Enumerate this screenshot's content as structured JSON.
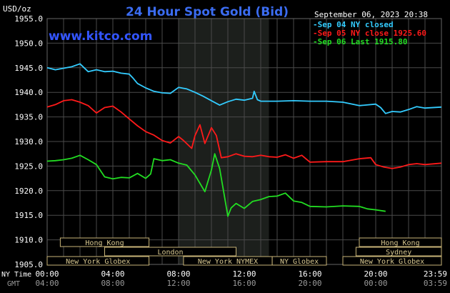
{
  "chart_data": {
    "type": "line",
    "title": "24 Hour Spot Gold (Bid)",
    "watermark": "www.kitco.com",
    "timestamp": "September 06, 2023 20:38",
    "y_unit": "USD/oz",
    "ylim": [
      1905.0,
      1955.0
    ],
    "yticks": [
      "1955.0",
      "1950.0",
      "1945.0",
      "1940.0",
      "1935.0",
      "1930.0",
      "1925.0",
      "1920.0",
      "1915.0",
      "1910.0",
      "1905.0"
    ],
    "xlim": [
      0,
      24
    ],
    "xlabel_ny": "NY Time",
    "xlabel_gmt": "GMT",
    "xticks_ny": [
      "00:00",
      "04:00",
      "08:00",
      "12:00",
      "16:00",
      "20:00",
      "23:59"
    ],
    "xticks_gmt": [
      "04:00",
      "08:00",
      "12:00",
      "16:00",
      "20:00",
      "00:00",
      "03:59"
    ],
    "grid": true,
    "legend_position": "top-right",
    "highlight_session_hours": [
      8.0,
      13.5
    ],
    "series": [
      {
        "name": "Sep 04 NY closed",
        "legend": "Sep 04 NY closed",
        "color": "#33ccff",
        "points": [
          [
            0,
            1945.0
          ],
          [
            0.5,
            1944.6
          ],
          [
            1,
            1944.9
          ],
          [
            1.5,
            1945.2
          ],
          [
            2,
            1945.8
          ],
          [
            2.5,
            1944.2
          ],
          [
            3,
            1944.6
          ],
          [
            3.5,
            1944.2
          ],
          [
            4,
            1944.3
          ],
          [
            4.5,
            1943.9
          ],
          [
            5,
            1943.7
          ],
          [
            5.2,
            1943.0
          ],
          [
            5.5,
            1941.8
          ],
          [
            6,
            1940.9
          ],
          [
            6.5,
            1940.2
          ],
          [
            7,
            1939.9
          ],
          [
            7.5,
            1939.8
          ],
          [
            8,
            1941.0
          ],
          [
            8.5,
            1940.7
          ],
          [
            9,
            1940.0
          ],
          [
            9.5,
            1939.2
          ],
          [
            10,
            1938.3
          ],
          [
            10.5,
            1937.4
          ],
          [
            11,
            1938.1
          ],
          [
            11.5,
            1938.6
          ],
          [
            12,
            1938.4
          ],
          [
            12.5,
            1938.8
          ],
          [
            12.6,
            1940.2
          ],
          [
            12.8,
            1938.5
          ],
          [
            13,
            1938.2
          ],
          [
            14,
            1938.2
          ],
          [
            15,
            1938.3
          ],
          [
            16,
            1938.2
          ],
          [
            17,
            1938.2
          ],
          [
            18,
            1938.0
          ],
          [
            19,
            1937.3
          ],
          [
            20,
            1937.6
          ],
          [
            20.3,
            1936.9
          ],
          [
            20.6,
            1935.7
          ],
          [
            21,
            1936.1
          ],
          [
            21.5,
            1936.0
          ],
          [
            22,
            1936.5
          ],
          [
            22.5,
            1937.1
          ],
          [
            23,
            1936.8
          ],
          [
            24,
            1937.0
          ]
        ]
      },
      {
        "name": "Sep 05 NY close 1925.60",
        "legend": "Sep 05 NY close 1925.60",
        "color": "#ff1a1a",
        "points": [
          [
            0,
            1937.0
          ],
          [
            0.5,
            1937.5
          ],
          [
            1,
            1938.3
          ],
          [
            1.5,
            1938.5
          ],
          [
            2,
            1938.0
          ],
          [
            2.5,
            1937.3
          ],
          [
            3,
            1935.8
          ],
          [
            3.5,
            1936.9
          ],
          [
            4,
            1937.2
          ],
          [
            4.5,
            1936.0
          ],
          [
            5,
            1934.6
          ],
          [
            5.5,
            1933.2
          ],
          [
            6,
            1932.0
          ],
          [
            6.5,
            1931.3
          ],
          [
            7,
            1930.2
          ],
          [
            7.5,
            1929.7
          ],
          [
            8,
            1931.0
          ],
          [
            8.3,
            1930.2
          ],
          [
            8.8,
            1928.6
          ],
          [
            9,
            1931.2
          ],
          [
            9.3,
            1933.4
          ],
          [
            9.6,
            1929.6
          ],
          [
            10,
            1932.8
          ],
          [
            10.3,
            1931.2
          ],
          [
            10.6,
            1926.7
          ],
          [
            11,
            1926.9
          ],
          [
            11.5,
            1927.5
          ],
          [
            12,
            1927.0
          ],
          [
            12.5,
            1926.9
          ],
          [
            13,
            1927.2
          ],
          [
            13.5,
            1926.9
          ],
          [
            14,
            1926.8
          ],
          [
            14.5,
            1927.3
          ],
          [
            15,
            1926.6
          ],
          [
            15.5,
            1927.2
          ],
          [
            16,
            1925.8
          ],
          [
            17,
            1925.9
          ],
          [
            18,
            1925.9
          ],
          [
            19,
            1926.5
          ],
          [
            19.7,
            1926.7
          ],
          [
            20,
            1925.3
          ],
          [
            20.5,
            1924.8
          ],
          [
            21,
            1924.5
          ],
          [
            21.5,
            1924.8
          ],
          [
            22,
            1925.3
          ],
          [
            22.5,
            1925.5
          ],
          [
            23,
            1925.3
          ],
          [
            24,
            1925.6
          ]
        ]
      },
      {
        "name": "Sep 06 Last 1915.80",
        "legend": "Sep 06 Last 1915.80",
        "color": "#22dd22",
        "points": [
          [
            0,
            1926.0
          ],
          [
            0.5,
            1926.1
          ],
          [
            1,
            1926.3
          ],
          [
            1.5,
            1926.6
          ],
          [
            2,
            1927.2
          ],
          [
            2.5,
            1926.3
          ],
          [
            3,
            1925.3
          ],
          [
            3.5,
            1922.8
          ],
          [
            4,
            1922.4
          ],
          [
            4.5,
            1922.7
          ],
          [
            5,
            1922.6
          ],
          [
            5.5,
            1923.5
          ],
          [
            6,
            1922.5
          ],
          [
            6.3,
            1923.4
          ],
          [
            6.5,
            1926.5
          ],
          [
            7,
            1926.1
          ],
          [
            7.5,
            1926.3
          ],
          [
            8,
            1925.6
          ],
          [
            8.5,
            1925.2
          ],
          [
            9,
            1923.2
          ],
          [
            9.3,
            1921.5
          ],
          [
            9.6,
            1919.8
          ],
          [
            10,
            1924.2
          ],
          [
            10.2,
            1927.5
          ],
          [
            10.5,
            1924.5
          ],
          [
            10.8,
            1918.7
          ],
          [
            11,
            1914.8
          ],
          [
            11.2,
            1916.5
          ],
          [
            11.5,
            1917.4
          ],
          [
            12,
            1916.4
          ],
          [
            12.5,
            1917.8
          ],
          [
            13,
            1918.2
          ],
          [
            13.5,
            1918.8
          ],
          [
            14,
            1918.9
          ],
          [
            14.5,
            1919.5
          ],
          [
            15,
            1917.9
          ],
          [
            15.5,
            1917.6
          ],
          [
            16,
            1916.8
          ],
          [
            17,
            1916.7
          ],
          [
            18,
            1916.9
          ],
          [
            19,
            1916.8
          ],
          [
            19.5,
            1916.3
          ],
          [
            20,
            1916.1
          ],
          [
            20.6,
            1915.8
          ]
        ]
      }
    ]
  },
  "markets": [
    {
      "name": "Hong Kong",
      "start": 0.8,
      "end": 6.2,
      "row": 0
    },
    {
      "name": "London",
      "start": 3.5,
      "end": 11.5,
      "row": 1
    },
    {
      "name": "New York Globex",
      "start": 0.0,
      "end": 6.2,
      "row": 2
    },
    {
      "name": "New York NYMEX",
      "start": 8.3,
      "end": 13.7,
      "row": 2
    },
    {
      "name": "NY Globex",
      "start": 13.7,
      "end": 17.0,
      "row": 2
    },
    {
      "name": "Hong Kong",
      "start": 19.0,
      "end": 24.0,
      "row": 0
    },
    {
      "name": "Sydney",
      "start": 18.8,
      "end": 24.0,
      "row": 1
    },
    {
      "name": "New York Globex",
      "start": 18.0,
      "end": 24.0,
      "row": 2
    }
  ],
  "colors": {
    "background": "#000000",
    "grid": "#4a4a4a",
    "session_shade": "#1c1f1c",
    "title": "#3b6cf0",
    "watermark": "#3355ff",
    "axis_text": "#ffffff",
    "gmt_text": "#9a9a9a",
    "market_box": "#c8b478",
    "market_text": "#d8c890"
  }
}
